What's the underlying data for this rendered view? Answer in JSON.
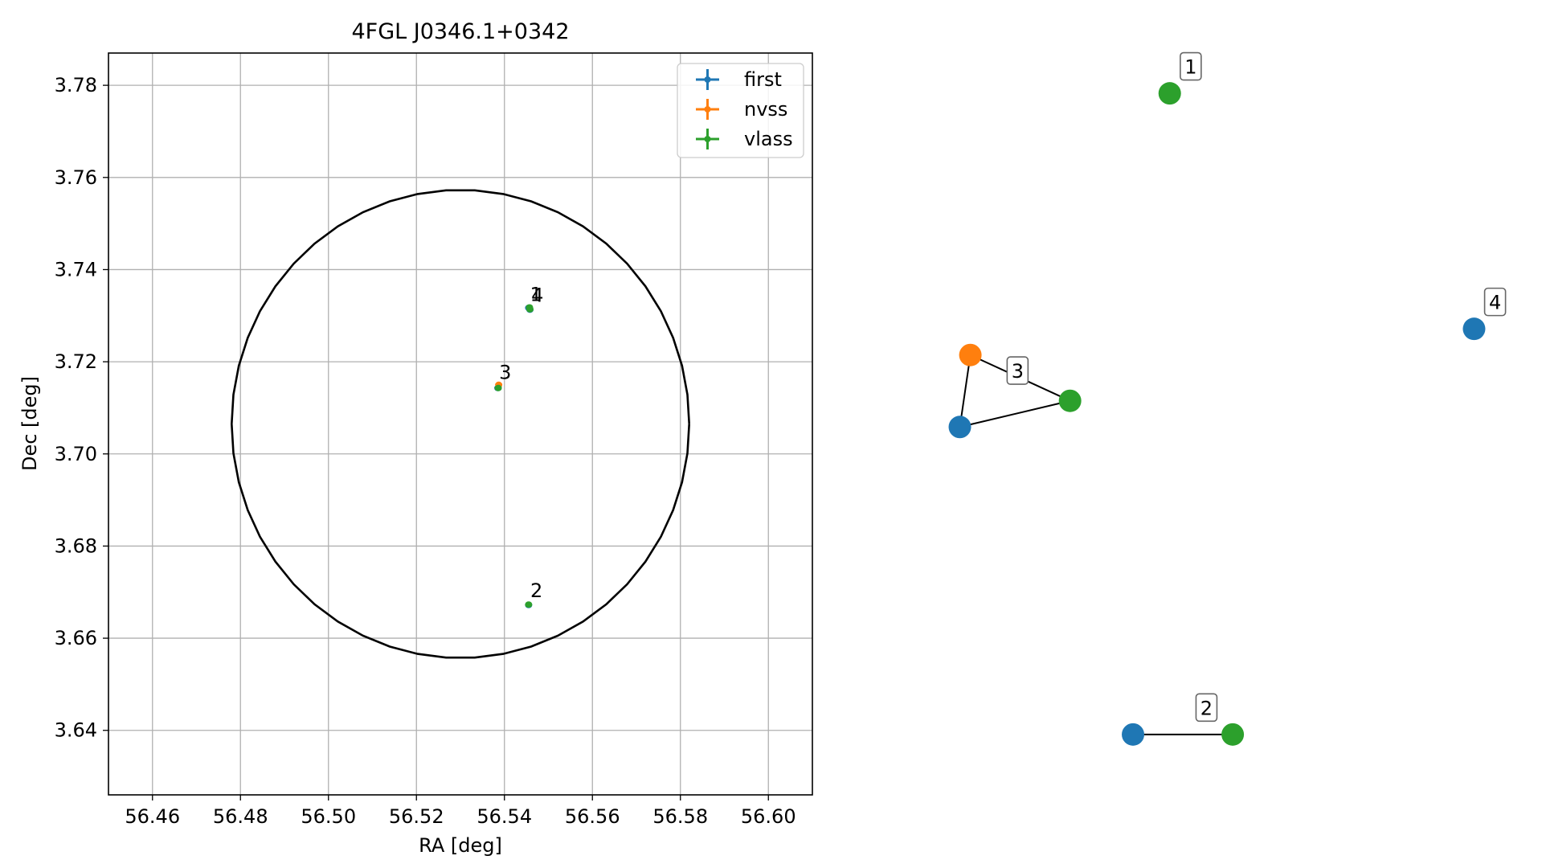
{
  "chart_data": [
    {
      "type": "scatter",
      "title": "4FGL J0346.1+0342",
      "xlabel": "RA [deg]",
      "ylabel": "Dec [deg]",
      "xlim": [
        56.45,
        56.61
      ],
      "ylim": [
        3.626,
        3.787
      ],
      "xticks": [
        56.46,
        56.48,
        56.5,
        56.52,
        56.54,
        56.56,
        56.58,
        56.6
      ],
      "xtick_labels": [
        "56.46",
        "56.48",
        "56.50",
        "56.52",
        "56.54",
        "56.56",
        "56.58",
        "56.60"
      ],
      "yticks": [
        3.64,
        3.66,
        3.68,
        3.7,
        3.72,
        3.74,
        3.76,
        3.78
      ],
      "ytick_labels": [
        "3.64",
        "3.66",
        "3.68",
        "3.70",
        "3.72",
        "3.74",
        "3.76",
        "3.78"
      ],
      "grid": true,
      "legend_position": "top-right",
      "colors": {
        "first": "#1f77b4",
        "nvss": "#ff7f0e",
        "vlass": "#2ca02c",
        "circle": "#000000",
        "grid": "#b0b0b0"
      },
      "series": [
        {
          "name": "first",
          "points": [
            {
              "x": 56.5455,
              "y": 3.7317
            },
            {
              "x": 56.5455,
              "y": 3.6672
            },
            {
              "x": 56.5385,
              "y": 3.7143
            },
            {
              "x": 56.5458,
              "y": 3.7313
            }
          ]
        },
        {
          "name": "nvss",
          "points": [
            {
              "x": 56.5387,
              "y": 3.715
            }
          ]
        },
        {
          "name": "vlass",
          "points": [
            {
              "x": 56.5457,
              "y": 3.7318
            },
            {
              "x": 56.5455,
              "y": 3.6673
            },
            {
              "x": 56.5386,
              "y": 3.7143
            },
            {
              "x": 56.5458,
              "y": 3.7314
            }
          ]
        }
      ],
      "circle": {
        "center_x": 56.53,
        "center_y": 3.7065,
        "radius_x": 0.052,
        "radius_y": 0.0508
      },
      "annotations": [
        {
          "text": "1",
          "x": 56.5458,
          "y": 3.7332
        },
        {
          "text": "4",
          "x": 56.5461,
          "y": 3.733
        },
        {
          "text": "3",
          "x": 56.5388,
          "y": 3.7163
        },
        {
          "text": "2",
          "x": 56.5459,
          "y": 3.6689
        }
      ]
    },
    {
      "type": "scatter",
      "subtype": "network-graph",
      "colors": {
        "first": "#1f77b4",
        "nvss": "#ff7f0e",
        "vlass": "#2ca02c"
      },
      "nodes": [
        {
          "id": "g1-vlass",
          "catalog": "vlass",
          "x": 0.41,
          "y": 0.99
        },
        {
          "id": "g4-first",
          "catalog": "first",
          "x": 0.99,
          "y": 0.63
        },
        {
          "id": "g3-nvss",
          "catalog": "nvss",
          "x": 0.03,
          "y": 0.59
        },
        {
          "id": "g3-vlass",
          "catalog": "vlass",
          "x": 0.22,
          "y": 0.52
        },
        {
          "id": "g3-first",
          "catalog": "first",
          "x": 0.01,
          "y": 0.48
        },
        {
          "id": "g2-first",
          "catalog": "first",
          "x": 0.34,
          "y": 0.01
        },
        {
          "id": "g2-vlass",
          "catalog": "vlass",
          "x": 0.53,
          "y": 0.01
        }
      ],
      "edges": [
        [
          "g3-nvss",
          "g3-vlass"
        ],
        [
          "g3-nvss",
          "g3-first"
        ],
        [
          "g3-first",
          "g3-vlass"
        ],
        [
          "g2-first",
          "g2-vlass"
        ]
      ],
      "group_labels": [
        {
          "text": "1",
          "x": 0.45,
          "y": 1.03
        },
        {
          "text": "4",
          "x": 1.03,
          "y": 0.67
        },
        {
          "text": "3",
          "x": 0.12,
          "y": 0.565
        },
        {
          "text": "2",
          "x": 0.48,
          "y": 0.05
        }
      ]
    }
  ]
}
